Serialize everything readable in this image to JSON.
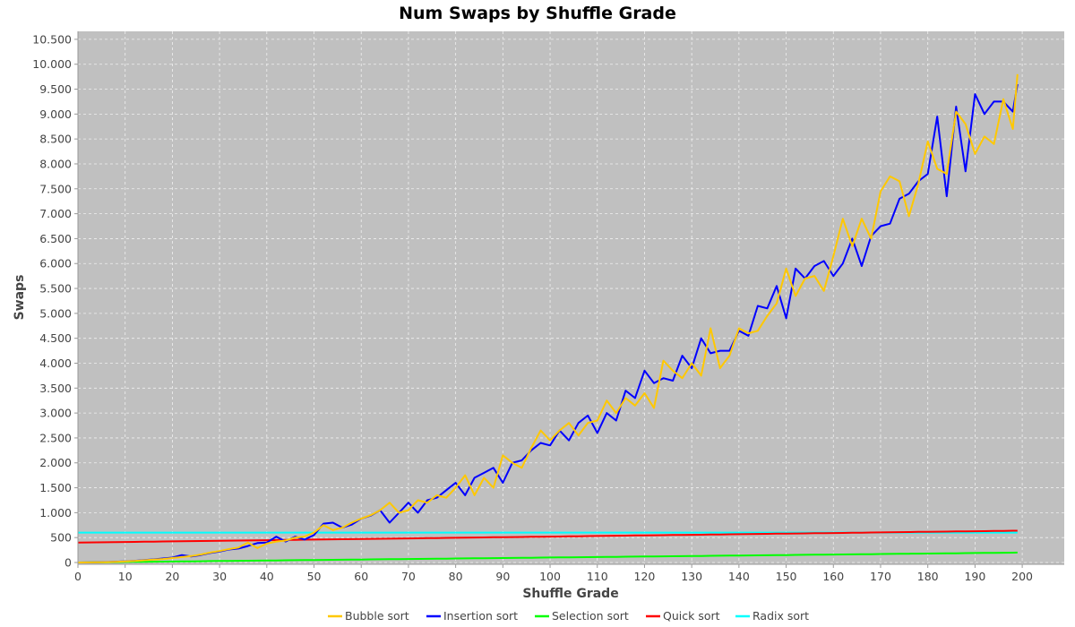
{
  "chart_data": {
    "type": "line",
    "title": "Num Swaps by Shuffle Grade",
    "xlabel": "Shuffle Grade",
    "ylabel": "Swaps",
    "xlim": [
      0,
      208.9
    ],
    "ylim": [
      -36,
      10660
    ],
    "xticks": [
      0,
      10,
      20,
      30,
      40,
      50,
      60,
      70,
      80,
      90,
      100,
      110,
      120,
      130,
      140,
      150,
      160,
      170,
      180,
      190,
      200
    ],
    "yticks": [
      0,
      500,
      1000,
      1500,
      2000,
      2500,
      3000,
      3500,
      4000,
      4500,
      5000,
      5500,
      6000,
      6500,
      7000,
      7500,
      8000,
      8500,
      9000,
      9500,
      10000,
      10500
    ],
    "ytick_labels": [
      "0",
      "500",
      "1.000",
      "1.500",
      "2.000",
      "2.500",
      "3.000",
      "3.500",
      "4.000",
      "4.500",
      "5.000",
      "5.500",
      "6.000",
      "6.500",
      "7.000",
      "7.500",
      "8.000",
      "8.500",
      "9.000",
      "9.500",
      "10.000",
      "10.500"
    ],
    "grid": true,
    "legend_position": "bottom",
    "x": [
      0,
      2,
      4,
      6,
      8,
      10,
      12,
      14,
      16,
      18,
      20,
      22,
      24,
      26,
      28,
      30,
      32,
      34,
      36,
      38,
      40,
      42,
      44,
      46,
      48,
      50,
      52,
      54,
      56,
      58,
      60,
      62,
      64,
      66,
      68,
      70,
      72,
      74,
      76,
      78,
      80,
      82,
      84,
      86,
      88,
      90,
      92,
      94,
      96,
      98,
      100,
      102,
      104,
      106,
      108,
      110,
      112,
      114,
      116,
      118,
      120,
      122,
      124,
      126,
      128,
      130,
      132,
      134,
      136,
      138,
      140,
      142,
      144,
      146,
      148,
      150,
      152,
      154,
      156,
      158,
      160,
      162,
      164,
      166,
      168,
      170,
      172,
      174,
      176,
      178,
      180,
      182,
      184,
      186,
      188,
      190,
      192,
      194,
      196,
      198,
      199
    ],
    "series": [
      {
        "name": "Radix sort",
        "color": "#00ffff",
        "values": [
          600,
          600,
          600,
          600,
          600,
          600,
          600,
          600,
          600,
          600,
          600,
          600,
          600,
          600,
          600,
          600,
          600,
          600,
          600,
          600,
          600,
          600,
          600,
          600,
          600,
          600,
          600,
          600,
          600,
          600,
          600,
          600,
          600,
          600,
          600,
          600,
          600,
          600,
          600,
          600,
          600,
          600,
          600,
          600,
          600,
          600,
          600,
          600,
          600,
          600,
          600,
          600,
          600,
          600,
          600,
          600,
          600,
          600,
          600,
          600,
          600,
          600,
          600,
          600,
          600,
          600,
          600,
          600,
          600,
          600,
          600,
          600,
          600,
          600,
          600,
          600,
          600,
          600,
          600,
          600,
          600,
          600,
          600,
          600,
          600,
          600,
          600,
          600,
          600,
          600,
          600,
          600,
          600,
          600,
          600,
          600,
          600,
          600,
          600,
          600,
          600
        ]
      },
      {
        "name": "Selection sort",
        "color": "#00ff00",
        "values": [
          0,
          2,
          4,
          6,
          8,
          10,
          12,
          14,
          16,
          18,
          20,
          22,
          24,
          26,
          28,
          30,
          32,
          34,
          36,
          38,
          40,
          42,
          44,
          46,
          48,
          50,
          52,
          54,
          56,
          58,
          60,
          62,
          64,
          66,
          68,
          70,
          72,
          74,
          76,
          78,
          80,
          82,
          84,
          86,
          88,
          90,
          92,
          94,
          96,
          98,
          100,
          102,
          104,
          106,
          108,
          110,
          112,
          114,
          116,
          118,
          120,
          122,
          124,
          126,
          128,
          130,
          132,
          134,
          136,
          138,
          140,
          142,
          144,
          146,
          148,
          150,
          152,
          154,
          156,
          158,
          160,
          162,
          164,
          166,
          168,
          170,
          172,
          174,
          176,
          178,
          180,
          182,
          184,
          186,
          188,
          190,
          192,
          194,
          196,
          198,
          199
        ]
      },
      {
        "name": "Quick sort",
        "color": "#ff0000",
        "values": [
          400,
          402,
          405,
          407,
          410,
          412,
          414,
          417,
          419,
          422,
          424,
          426,
          429,
          431,
          434,
          436,
          438,
          441,
          443,
          446,
          448,
          450,
          453,
          455,
          458,
          460,
          462,
          465,
          467,
          470,
          472,
          474,
          477,
          479,
          482,
          484,
          486,
          489,
          491,
          494,
          496,
          498,
          501,
          503,
          506,
          508,
          510,
          513,
          515,
          518,
          520,
          522,
          525,
          527,
          530,
          532,
          534,
          537,
          539,
          542,
          544,
          546,
          549,
          551,
          554,
          556,
          558,
          561,
          563,
          566,
          568,
          570,
          573,
          575,
          578,
          580,
          582,
          585,
          587,
          590,
          592,
          594,
          597,
          599,
          602,
          604,
          606,
          609,
          611,
          614,
          616,
          618,
          621,
          623,
          626,
          628,
          630,
          633,
          635,
          638,
          639
        ]
      },
      {
        "name": "Insertion sort",
        "color": "#0000ff",
        "values": [
          0,
          1,
          4,
          9,
          16,
          25,
          35,
          48,
          63,
          80,
          98,
          150,
          120,
          150,
          190,
          220,
          260,
          280,
          330,
          390,
          400,
          520,
          420,
          520,
          460,
          550,
          780,
          800,
          700,
          760,
          880,
          940,
          1050,
          800,
          1000,
          1200,
          1000,
          1250,
          1300,
          1450,
          1600,
          1350,
          1700,
          1800,
          1900,
          1600,
          2000,
          2050,
          2250,
          2400,
          2350,
          2650,
          2450,
          2800,
          2950,
          2600,
          3000,
          2850,
          3450,
          3300,
          3850,
          3600,
          3700,
          3650,
          4150,
          3900,
          4500,
          4200,
          4250,
          4250,
          4650,
          4550,
          5150,
          5100,
          5550,
          4900,
          5900,
          5700,
          5950,
          6050,
          5750,
          6000,
          6500,
          5950,
          6550,
          6750,
          6800,
          7300,
          7400,
          7650,
          7800,
          8950,
          7350,
          9150,
          7850,
          9400,
          9000,
          9250,
          9250,
          9050,
          9600
        ]
      },
      {
        "name": "Bubble sort",
        "color": "#ffc800",
        "values": [
          0,
          1,
          3,
          8,
          14,
          22,
          30,
          45,
          60,
          70,
          90,
          110,
          130,
          160,
          200,
          230,
          270,
          300,
          400,
          290,
          380,
          420,
          440,
          500,
          520,
          600,
          750,
          650,
          700,
          800,
          880,
          950,
          1050,
          1200,
          1000,
          1050,
          1250,
          1200,
          1350,
          1300,
          1500,
          1750,
          1350,
          1700,
          1500,
          2150,
          2000,
          1900,
          2300,
          2650,
          2450,
          2650,
          2800,
          2550,
          2800,
          2850,
          3250,
          3000,
          3300,
          3150,
          3400,
          3100,
          4050,
          3850,
          3700,
          4000,
          3750,
          4700,
          3900,
          4150,
          4700,
          4600,
          4650,
          4950,
          5200,
          5900,
          5350,
          5700,
          5750,
          5450,
          6150,
          6900,
          6350,
          6900,
          6500,
          7450,
          7750,
          7650,
          6950,
          7600,
          8450,
          7900,
          7800,
          9050,
          8800,
          8200,
          8550,
          8400,
          9300,
          8700,
          9800
        ]
      }
    ],
    "legend": [
      "Bubble sort",
      "Insertion sort",
      "Selection sort",
      "Quick sort",
      "Radix sort"
    ]
  }
}
